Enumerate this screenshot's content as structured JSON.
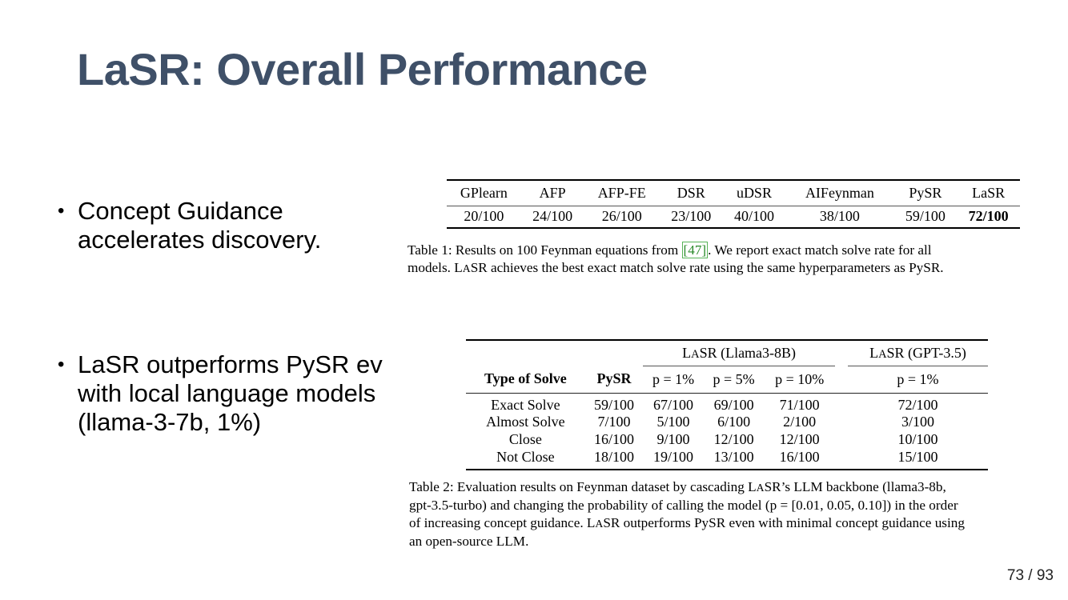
{
  "slide": {
    "title": "LaSR: Overall Performance",
    "page_current": "73",
    "page_separator": "/",
    "page_total": "93",
    "title_color": "#3f5068"
  },
  "bullets": [
    {
      "marker": "•",
      "lines": [
        "Concept Guidance",
        "accelerates discovery."
      ]
    },
    {
      "marker": "•",
      "lines": [
        "LaSR outperforms PySR ev",
        "with local language models",
        "(llama-3-7b, 1%)"
      ]
    }
  ],
  "table1": {
    "headers": [
      "GPlearn",
      "AFP",
      "AFP-FE",
      "DSR",
      "uDSR",
      "AIFeynman",
      "PySR",
      "LaSR"
    ],
    "values": [
      "20/100",
      "24/100",
      "26/100",
      "23/100",
      "40/100",
      "38/100",
      "59/100",
      "72/100"
    ],
    "best_index": 7,
    "caption": {
      "line1_before": "Table 1:  Results on 100 Feynman equations from ",
      "ref": "[47]",
      "line1_after": ".  We report exact match solve rate for all",
      "line2_a": "models. L",
      "line2_sc": "A",
      "line2_b": "SR achieves the best exact match solve rate using the same hyperparameters as PySR."
    }
  },
  "table2": {
    "group_llama": {
      "pre": "L",
      "sc": "A",
      "post": "SR (Llama3-8B)"
    },
    "group_gpt": {
      "pre": "L",
      "sc": "A",
      "post": "SR (GPT-3.5)"
    },
    "col_type": "Type of Solve",
    "col_pysr": "PySR",
    "sub_headers": [
      "p = 1%",
      "p = 5%",
      "p = 10%",
      "p = 1%"
    ],
    "rows": [
      {
        "label": "Exact Solve",
        "pysr": "59/100",
        "l1": "67/100",
        "l5": "69/100",
        "l10": "71/100",
        "g1": "72/100"
      },
      {
        "label": "Almost Solve",
        "pysr": "7/100",
        "l1": "5/100",
        "l5": "6/100",
        "l10": "2/100",
        "g1": "3/100"
      },
      {
        "label": "Close",
        "pysr": "16/100",
        "l1": "9/100",
        "l5": "12/100",
        "l10": "12/100",
        "g1": "10/100"
      },
      {
        "label": "Not Close",
        "pysr": "18/100",
        "l1": "19/100",
        "l5": "13/100",
        "l10": "16/100",
        "g1": "15/100"
      }
    ],
    "caption": {
      "line1_a": "Table 2: Evaluation results on Feynman dataset by cascading L",
      "line1_sc": "A",
      "line1_b": "SR’s LLM backbone (llama3-8b,",
      "line2": "gpt-3.5-turbo) and changing the probability of calling the model (p = [0.01, 0.05, 0.10]) in the order",
      "line3_a": "of increasing concept guidance. L",
      "line3_sc": "A",
      "line3_b": "SR outperforms PySR even with minimal concept guidance using",
      "line4": "an open-source LLM."
    }
  }
}
